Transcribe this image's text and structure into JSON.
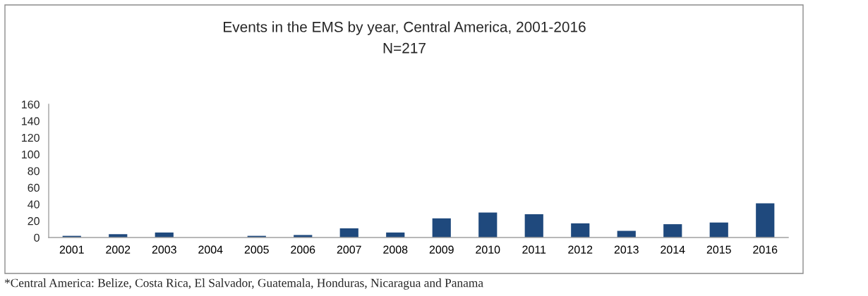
{
  "chart_data": {
    "type": "bar",
    "title": "Events in the EMS by year, Central America, 2001-2016",
    "subtitle": "N=217",
    "categories": [
      "2001",
      "2002",
      "2003",
      "2004",
      "2005",
      "2006",
      "2007",
      "2008",
      "2009",
      "2010",
      "2011",
      "2012",
      "2013",
      "2014",
      "2015",
      "2016"
    ],
    "values": [
      2,
      4,
      6,
      0,
      2,
      3,
      11,
      6,
      23,
      30,
      28,
      17,
      8,
      16,
      18,
      41
    ],
    "color": "#1f497d",
    "ylim": [
      0,
      160
    ],
    "yticks": [
      0,
      20,
      40,
      60,
      80,
      100,
      120,
      140,
      160
    ],
    "annotations": [
      "*Central America: Belize, Costa Rica, El Salvador, Guatemala, Honduras, Nicaragua and Panama"
    ]
  }
}
